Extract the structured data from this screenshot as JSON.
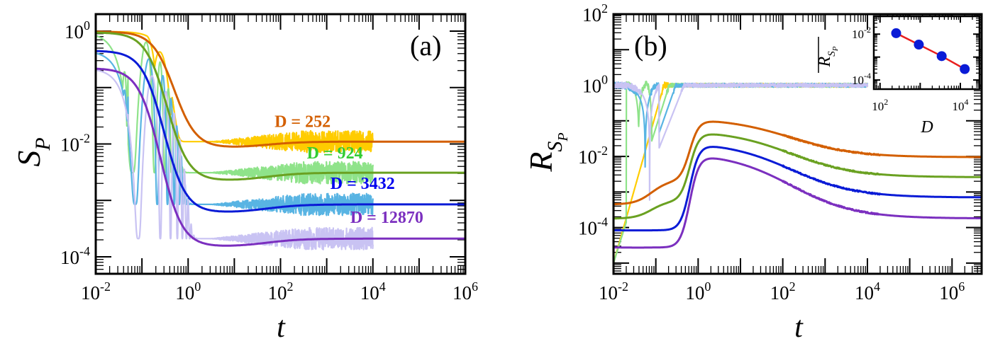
{
  "chart_data": [
    {
      "panel": "a",
      "type": "line",
      "panel_label": "(a)",
      "xlabel": "t",
      "ylabel_main": "S",
      "ylabel_sub": "P",
      "xscale": "log",
      "yscale": "log",
      "xlim": [
        0.01,
        1000000
      ],
      "ylim": [
        5e-05,
        2
      ],
      "xticks": [
        {
          "v": 0.01,
          "m": "10",
          "e": "-2"
        },
        {
          "v": 1,
          "m": "10",
          "e": "0"
        },
        {
          "v": 100,
          "m": "10",
          "e": "2"
        },
        {
          "v": 10000,
          "m": "10",
          "e": "4"
        },
        {
          "v": 1000000,
          "m": "10",
          "e": "6"
        }
      ],
      "yticks": [
        {
          "v": 0.0001,
          "m": "10",
          "e": "-4"
        },
        {
          "v": 0.01,
          "m": "10",
          "e": "-2"
        },
        {
          "v": 1,
          "m": "10",
          "e": "0"
        }
      ],
      "series": [
        {
          "name": "D = 252",
          "color": "#d35f00",
          "light": "#ffcc00",
          "plateau": 0.011,
          "start": 0.98,
          "min_t": 1.6,
          "min": 0.0085,
          "tau": 0.5,
          "fluct_end": 10000
        },
        {
          "name": "D = 924",
          "color": "#6aa121",
          "light": "#8fe38a",
          "plateau": 0.0031,
          "start": 0.95,
          "min_t": 1.6,
          "min": 0.0022,
          "tau": 0.35,
          "fluct_end": 10000
        },
        {
          "name": "D = 3432",
          "color": "#0a1bd6",
          "light": "#58b4e3",
          "plateau": 0.00085,
          "start": 0.45,
          "min_t": 1.6,
          "min": 0.0006,
          "tau": 0.3,
          "fluct_end": 10000
        },
        {
          "name": "D = 12870",
          "color": "#7b2fbf",
          "light": "#c9c3f3",
          "plateau": 0.00021,
          "start": 0.22,
          "min_t": 1.6,
          "min": 0.00015,
          "tau": 0.25,
          "fluct_end": 10000
        }
      ],
      "annotations": [
        {
          "text": "D = 252",
          "color": "#d35f00",
          "x": 300,
          "y": 0.02
        },
        {
          "text": "D = 924",
          "color": "#33cc33",
          "x": 1500,
          "y": 0.0055
        },
        {
          "text": "D = 3432",
          "color": "#0000ee",
          "x": 6000,
          "y": 0.0016
        },
        {
          "text": "D = 12870",
          "color": "#7b2fbf",
          "x": 20000,
          "y": 0.0004
        }
      ]
    },
    {
      "panel": "b",
      "type": "line",
      "panel_label": "(b)",
      "xlabel": "t",
      "ylabel_main": "R",
      "ylabel_sub": "S",
      "ylabel_subsub": "P",
      "xscale": "log",
      "yscale": "log",
      "xlim": [
        0.01,
        5000000
      ],
      "ylim": [
        5e-06,
        100
      ],
      "xticks": [
        {
          "v": 0.01,
          "m": "10",
          "e": "-2"
        },
        {
          "v": 1,
          "m": "10",
          "e": "0"
        },
        {
          "v": 100,
          "m": "10",
          "e": "2"
        },
        {
          "v": 10000,
          "m": "10",
          "e": "4"
        },
        {
          "v": 1000000,
          "m": "10",
          "e": "6"
        }
      ],
      "yticks": [
        {
          "v": 0.0001,
          "m": "10",
          "e": "-4"
        },
        {
          "v": 0.01,
          "m": "10",
          "e": "-2"
        },
        {
          "v": 1,
          "m": "10",
          "e": "0"
        },
        {
          "v": 100,
          "m": "10",
          "e": "2"
        }
      ],
      "series": [
        {
          "name": "D = 252",
          "color": "#d35f00",
          "light": "#ffcc00",
          "early": 0.00045,
          "shoulder": 0.0022,
          "peak": 0.12,
          "plateau": 0.0095
        },
        {
          "name": "D = 924",
          "color": "#6aa121",
          "light": "#8fe38a",
          "early": 0.00018,
          "shoulder": 0.0006,
          "peak": 0.055,
          "plateau": 0.0026
        },
        {
          "name": "D = 3432",
          "color": "#0a1bd6",
          "light": "#58b4e3",
          "early": 8.5e-05,
          "shoulder": 9e-05,
          "peak": 0.026,
          "plateau": 0.0007
        },
        {
          "name": "D = 12870",
          "color": "#7b2fbf",
          "light": "#c9c3f3",
          "early": 2.8e-05,
          "shoulder": 3e-05,
          "peak": 0.013,
          "plateau": 0.00018
        }
      ],
      "inset": {
        "xlabel": "D",
        "ylabel_main": "R",
        "ylabel_sub": "S",
        "ylabel_subsub": "P",
        "xlim": [
          70,
          30000
        ],
        "ylim": [
          4e-05,
          0.06
        ],
        "xticks": [
          {
            "v": 100,
            "m": "10",
            "e": "2"
          },
          {
            "v": 10000,
            "m": "10",
            "e": "4"
          }
        ],
        "yticks": [
          {
            "v": 0.0001,
            "m": "10",
            "e": "-4"
          },
          {
            "v": 0.01,
            "m": "10",
            "e": "-2"
          }
        ],
        "points": [
          {
            "x": 252,
            "y": 0.011
          },
          {
            "x": 924,
            "y": 0.0035
          },
          {
            "x": 3432,
            "y": 0.0011
          },
          {
            "x": 12870,
            "y": 0.0003
          }
        ],
        "point_color": "#0a1bd6",
        "fit_color": "#e81f1f"
      }
    }
  ]
}
